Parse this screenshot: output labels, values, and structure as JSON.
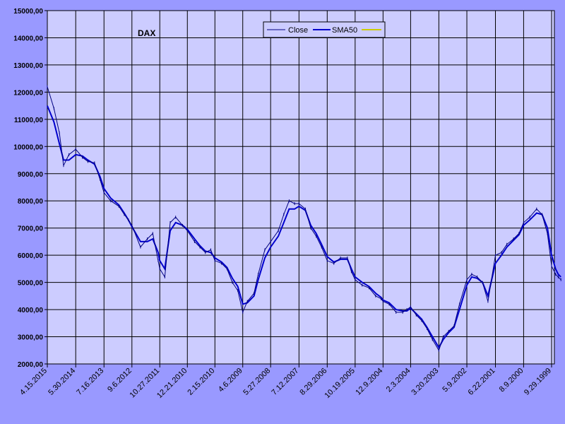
{
  "chart_data": {
    "type": "line",
    "title": "DAX",
    "xlabel": "",
    "ylabel": "",
    "ylim": [
      2000,
      15000
    ],
    "y_ticks": [
      "2000,00",
      "3000,00",
      "4000,00",
      "5000,00",
      "6000,00",
      "7000,00",
      "8000,00",
      "9000,00",
      "10000,00",
      "11000,00",
      "12000,00",
      "13000,00",
      "14000,00",
      "15000,00"
    ],
    "x_tick_labels": [
      "4.15.2015",
      "5.30.2014",
      "7.16.2013",
      "9.6.2012",
      "10.27.2011",
      "12.21.2010",
      "2.15.2010",
      "4.6.2009",
      "5.27.2008",
      "7.12.2007",
      "8.29.2006",
      "10.19.2005",
      "12.9.2004",
      "2.3.2004",
      "3.20.2003",
      "5.9.2002",
      "6.22.2001",
      "8.9.2000",
      "9.29.1999"
    ],
    "x_order": "descending (newest on left)",
    "grid": true,
    "legend_position": "top",
    "colors": {
      "plot_bg": "#ccccff",
      "outer_bg": "#9999ff",
      "close": "#000080",
      "sma50": "#0000cc",
      "sma200": "#cccc00"
    },
    "series": [
      {
        "name": "Close",
        "x": [
          "4.15.2015",
          "2.1.2015",
          "12.1.2014",
          "10.15.2014",
          "8.15.2014",
          "5.30.2014",
          "3.15.2014",
          "1.15.2014",
          "11.1.2013",
          "9.1.2013",
          "7.16.2013",
          "5.1.2013",
          "2.1.2013",
          "12.1.2012",
          "10.15.2012",
          "9.6.2012",
          "6.1.2012",
          "3.15.2012",
          "1.15.2012",
          "11.15.2011",
          "10.27.2011",
          "9.1.2011",
          "7.1.2011",
          "5.1.2011",
          "2.15.2011",
          "12.21.2010",
          "10.1.2010",
          "8.1.2010",
          "6.1.2010",
          "4.1.2010",
          "2.15.2010",
          "12.1.2009",
          "10.1.2009",
          "8.1.2009",
          "6.1.2009",
          "4.6.2009",
          "2.15.2009",
          "12.1.2008",
          "10.15.2008",
          "8.1.2008",
          "5.27.2008",
          "3.1.2008",
          "1.1.2008",
          "11.1.2007",
          "9.1.2007",
          "7.12.2007",
          "5.1.2007",
          "3.1.2007",
          "1.1.2007",
          "11.1.2006",
          "8.29.2006",
          "6.15.2006",
          "4.1.2006",
          "1.15.2006",
          "12.1.2005",
          "10.19.2005",
          "8.1.2005",
          "5.15.2005",
          "3.1.2005",
          "1.1.2005",
          "12.9.2004",
          "10.1.2004",
          "7.15.2004",
          "5.1.2004",
          "3.15.2004",
          "2.3.2004",
          "12.1.2003",
          "10.1.2003",
          "8.1.2003",
          "6.1.2003",
          "3.20.2003",
          "2.1.2003",
          "12.1.2002",
          "10.1.2002",
          "8.1.2002",
          "5.9.2002",
          "3.15.2002",
          "1.15.2002",
          "11.15.2001",
          "9.15.2001",
          "6.22.2001",
          "4.15.2001",
          "2.15.2001",
          "12.1.2000",
          "10.1.2000",
          "8.9.2000",
          "6.1.2000",
          "3.15.2000",
          "1.15.2000",
          "11.15.1999",
          "9.29.1999",
          "8.15.1999",
          "7.15.1999",
          "6.15.1999"
        ],
        "y": [
          12200,
          11400,
          10500,
          9300,
          9700,
          9900,
          9600,
          9450,
          9400,
          8800,
          8300,
          8000,
          7800,
          7500,
          7300,
          7100,
          6300,
          6600,
          6800,
          5800,
          5500,
          5200,
          7200,
          7400,
          7100,
          6900,
          6500,
          6300,
          6100,
          6200,
          5800,
          5700,
          5500,
          5000,
          4700,
          3900,
          4300,
          4600,
          5300,
          6200,
          6500,
          6900,
          7500,
          8000,
          7900,
          7900,
          7700,
          7000,
          6700,
          6300,
          5800,
          5700,
          5900,
          5900,
          5400,
          5100,
          4900,
          4800,
          4500,
          4400,
          4300,
          4200,
          3900,
          3900,
          4000,
          4100,
          3800,
          3600,
          3300,
          2900,
          2500,
          3000,
          3200,
          3400,
          4200,
          5100,
          5300,
          5200,
          5000,
          4300,
          6000,
          6100,
          6400,
          6600,
          6800,
          7200,
          7400,
          7700,
          7500,
          6800,
          5600,
          5300,
          5200,
          5100
        ]
      },
      {
        "name": "SMA50",
        "x": [
          "4.15.2015",
          "2.1.2015",
          "12.1.2014",
          "10.15.2014",
          "8.15.2014",
          "5.30.2014",
          "3.15.2014",
          "1.15.2014",
          "11.1.2013",
          "9.1.2013",
          "7.16.2013",
          "5.1.2013",
          "2.1.2013",
          "12.1.2012",
          "10.15.2012",
          "9.6.2012",
          "6.1.2012",
          "3.15.2012",
          "1.15.2012",
          "11.15.2011",
          "10.27.2011",
          "9.1.2011",
          "7.1.2011",
          "5.1.2011",
          "2.15.2011",
          "12.21.2010",
          "10.1.2010",
          "8.1.2010",
          "6.1.2010",
          "4.1.2010",
          "2.15.2010",
          "12.1.2009",
          "10.1.2009",
          "8.1.2009",
          "6.1.2009",
          "4.6.2009",
          "2.15.2009",
          "12.1.2008",
          "10.15.2008",
          "8.1.2008",
          "5.27.2008",
          "3.1.2008",
          "1.1.2008",
          "11.1.2007",
          "9.1.2007",
          "7.12.2007",
          "5.1.2007",
          "3.1.2007",
          "1.1.2007",
          "11.1.2006",
          "8.29.2006",
          "6.15.2006",
          "4.1.2006",
          "1.15.2006",
          "12.1.2005",
          "10.19.2005",
          "8.1.2005",
          "5.15.2005",
          "3.1.2005",
          "1.1.2005",
          "12.9.2004",
          "10.1.2004",
          "7.15.2004",
          "5.1.2004",
          "3.15.2004",
          "2.3.2004",
          "12.1.2003",
          "10.1.2003",
          "8.1.2003",
          "6.1.2003",
          "3.20.2003",
          "2.1.2003",
          "12.1.2002",
          "10.1.2002",
          "8.1.2002",
          "5.9.2002",
          "3.15.2002",
          "1.15.2002",
          "11.15.2001",
          "9.15.2001",
          "6.22.2001",
          "4.15.2001",
          "2.15.2001",
          "12.1.2000",
          "10.1.2000",
          "8.9.2000",
          "6.1.2000",
          "3.15.2000",
          "1.15.2000",
          "11.15.1999",
          "9.29.1999",
          "8.15.1999",
          "7.15.1999",
          "6.15.1999"
        ],
        "y": [
          11500,
          10900,
          10100,
          9500,
          9500,
          9700,
          9650,
          9500,
          9350,
          8900,
          8450,
          8100,
          7850,
          7550,
          7300,
          7050,
          6500,
          6500,
          6600,
          6100,
          5800,
          5500,
          6900,
          7200,
          7100,
          6950,
          6600,
          6350,
          6150,
          6100,
          5900,
          5750,
          5550,
          5150,
          4850,
          4200,
          4250,
          4500,
          5100,
          5900,
          6300,
          6700,
          7200,
          7700,
          7700,
          7800,
          7650,
          7100,
          6800,
          6400,
          5950,
          5750,
          5850,
          5850,
          5500,
          5200,
          5000,
          4850,
          4600,
          4450,
          4350,
          4250,
          4000,
          3950,
          3950,
          4050,
          3850,
          3650,
          3350,
          3000,
          2600,
          2900,
          3150,
          3350,
          4000,
          4900,
          5200,
          5150,
          5000,
          4500,
          5700,
          6000,
          6300,
          6550,
          6750,
          7100,
          7300,
          7550,
          7500,
          7000,
          6000,
          5500,
          5300,
          5200
        ]
      },
      {
        "name": "",
        "x": [],
        "y": []
      }
    ]
  }
}
